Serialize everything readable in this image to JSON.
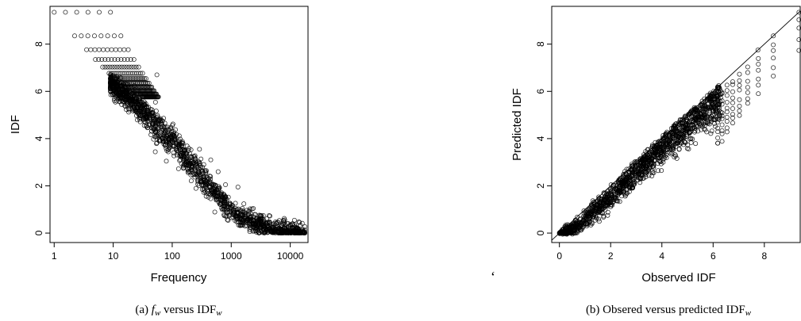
{
  "chart_data": [
    {
      "type": "scatter",
      "xlabel": "Frequency",
      "ylabel": "IDF",
      "xscale": "log",
      "xlim": [
        0.85,
        20000
      ],
      "ylim": [
        -0.4,
        9.6
      ],
      "xticks": [
        "1",
        "10",
        "100",
        "1000",
        "10000"
      ],
      "yticks": [
        "0",
        "2",
        "4",
        "6",
        "8"
      ],
      "caption": "(a) $f_w$ versus IDF$_w$",
      "caption_parts": {
        "label": "(a) ",
        "f": "f",
        "f_sub": "w",
        "versus": " versus IDF",
        "idf_sub": "w"
      },
      "summary_points": {
        "x": [
          1,
          2,
          3,
          4,
          5,
          6,
          7,
          8,
          10,
          13,
          20,
          30,
          50,
          100,
          200,
          300,
          500,
          1000,
          2000,
          5000,
          10000,
          18000
        ],
        "y": [
          9.35,
          9.35,
          8.35,
          7.75,
          7.35,
          7.05,
          6.75,
          6.55,
          6.25,
          6.0,
          5.7,
          5.2,
          4.6,
          3.9,
          2.95,
          2.45,
          1.8,
          0.95,
          0.5,
          0.15,
          0.05,
          0.0
        ]
      }
    },
    {
      "type": "scatter",
      "xlabel": "Observed IDF",
      "ylabel": "Predicted IDF",
      "xlim": [
        -0.3,
        9.4
      ],
      "ylim": [
        -0.4,
        9.6
      ],
      "xticks": [
        "0",
        "2",
        "4",
        "6",
        "8"
      ],
      "yticks": [
        "0",
        "2",
        "4",
        "6",
        "8"
      ],
      "reference_line": "y = x",
      "caption": "(b) Obsered versus predicted IDF$_w$",
      "caption_parts": {
        "label": "(b) Obsered versus predicted IDF",
        "idf_sub": "w"
      },
      "summary_points": {
        "x": [
          0.0,
          0.3,
          0.6,
          1.0,
          2.0,
          3.0,
          4.0,
          5.0,
          6.0,
          6.5,
          7.0,
          7.75,
          8.35,
          9.35
        ],
        "y": [
          0.0,
          0.05,
          0.2,
          0.6,
          1.5,
          2.6,
          3.6,
          4.6,
          5.4,
          5.8,
          6.2,
          6.7,
          7.2,
          8.0
        ]
      }
    }
  ]
}
